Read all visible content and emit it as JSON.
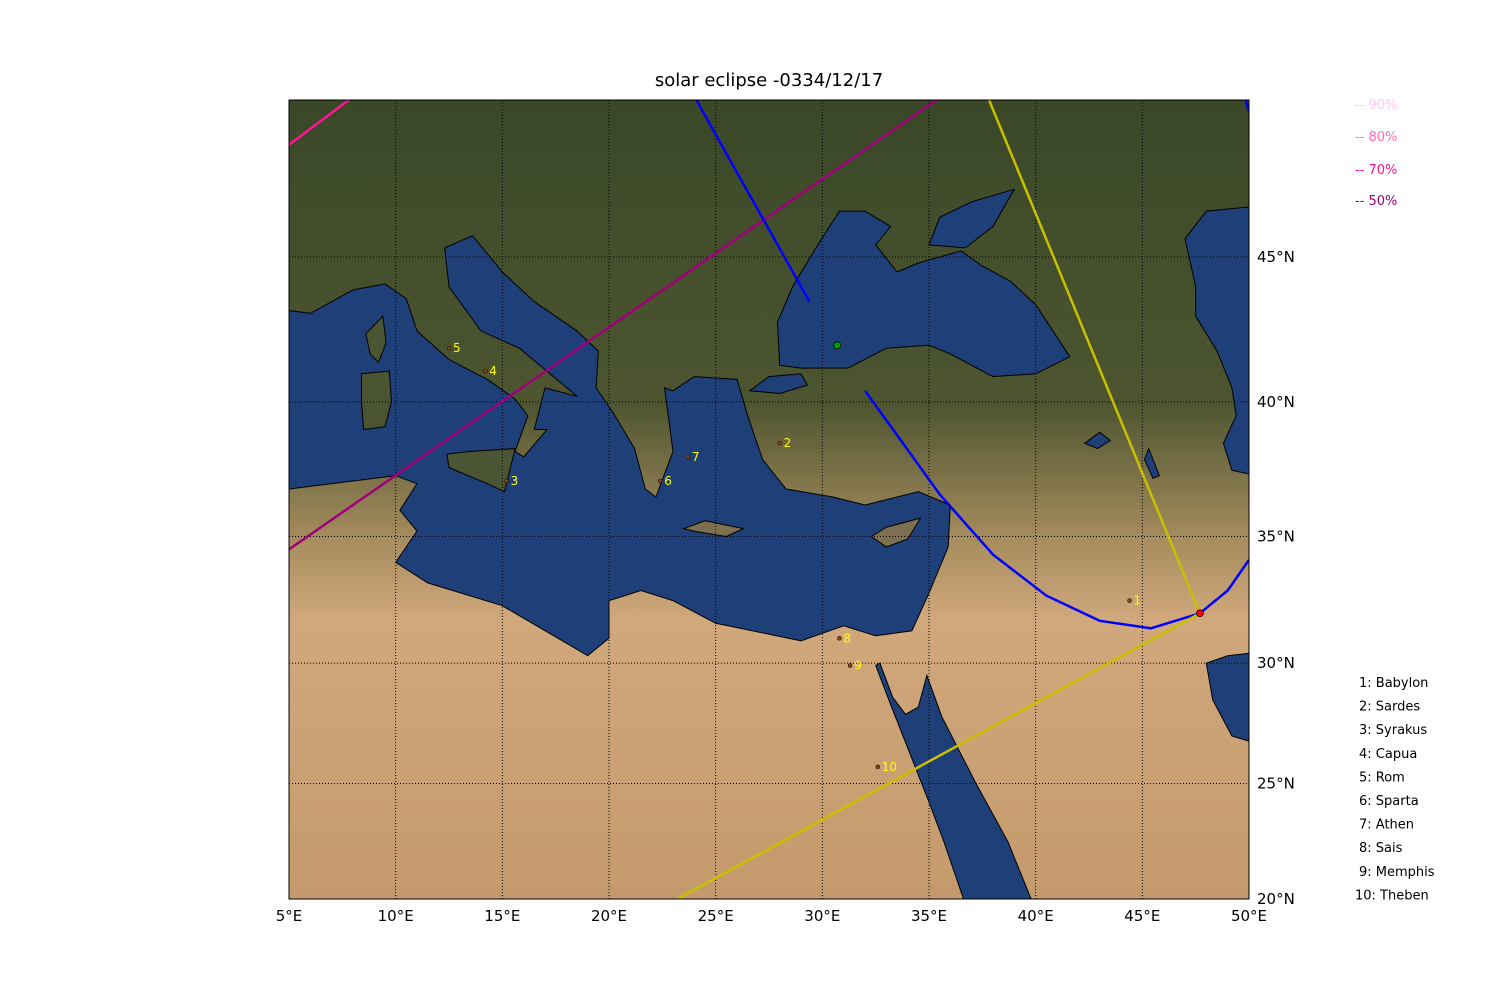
{
  "title": "solar eclipse -0334/12/17",
  "map": {
    "projection": "mercator",
    "lon_range": [
      5,
      50
    ],
    "lat_range": [
      20,
      50
    ],
    "lon_ticks": [
      5,
      10,
      15,
      20,
      25,
      30,
      35,
      40,
      45,
      50
    ],
    "lon_tick_labels": [
      "5°E",
      "10°E",
      "15°E",
      "20°E",
      "25°E",
      "30°E",
      "35°E",
      "40°E",
      "45°E",
      "50°E"
    ],
    "lat_ticks": [
      20,
      25,
      30,
      35,
      40,
      45
    ],
    "lat_tick_labels": [
      "20°N",
      "25°N",
      "30°N",
      "35°N",
      "40°N",
      "45°N"
    ],
    "grid": true,
    "colors": {
      "sea": "#1f3f78",
      "land_north": "#3e4b2c",
      "land_south": "#c9a276"
    }
  },
  "obscuration_legend": [
    {
      "label": "-- 90%",
      "color": "#ffc8f0"
    },
    {
      "label": "-- 80%",
      "color": "#ff6eb4"
    },
    {
      "label": "-- 70%",
      "color": "#ff1493"
    },
    {
      "label": "-- 50%",
      "color": "#a0007a"
    }
  ],
  "lines": [
    {
      "id": "70%",
      "color": "#ff1493",
      "points": [
        [
          5,
          48.6
        ],
        [
          8.5,
          50.3
        ]
      ]
    },
    {
      "id": "50%",
      "color": "#a0007a",
      "points": [
        [
          5,
          34.5
        ],
        [
          36.1,
          50.3
        ]
      ]
    },
    {
      "id": "blue-north",
      "color": "#0000ff",
      "points": [
        [
          23.8,
          50.3
        ],
        [
          29.4,
          43.5
        ]
      ]
    },
    {
      "id": "blue-corner",
      "color": "#0000ff",
      "points": [
        [
          49.7,
          50.3
        ],
        [
          50,
          49.6
        ]
      ]
    },
    {
      "id": "blue-curve",
      "color": "#0000ff",
      "points": [
        [
          32.0,
          40.4
        ],
        [
          33.5,
          38.8
        ],
        [
          35.5,
          36.6
        ],
        [
          38,
          34.3
        ],
        [
          40.5,
          32.7
        ],
        [
          43,
          31.7
        ],
        [
          45.4,
          31.4
        ],
        [
          47.7,
          32.0
        ],
        [
          49,
          32.9
        ],
        [
          50,
          34.1
        ]
      ]
    },
    {
      "id": "yellow",
      "color": "#c8c000",
      "points": [
        [
          37.6,
          50.3
        ],
        [
          47.7,
          32.0
        ],
        [
          23.2,
          20.0
        ]
      ]
    }
  ],
  "markers": [
    {
      "lon": 47.7,
      "lat": 32.0,
      "color": "#ff0000"
    },
    {
      "lon": 30.7,
      "lat": 42.0,
      "color": "#00a000"
    }
  ],
  "cities": [
    {
      "num": "1",
      "name": "Babylon",
      "lon": 44.4,
      "lat": 32.5,
      "legend": "1: Babylon"
    },
    {
      "num": "2",
      "name": "Sardes",
      "lon": 28.0,
      "lat": 38.5,
      "legend": "2: Sardes"
    },
    {
      "num": "3",
      "name": "Syrakus",
      "lon": 15.2,
      "lat": 37.1,
      "legend": "3: Syrakus"
    },
    {
      "num": "4",
      "name": "Capua",
      "lon": 14.2,
      "lat": 41.1,
      "legend": "4: Capua"
    },
    {
      "num": "5",
      "name": "Rom",
      "lon": 12.5,
      "lat": 41.9,
      "legend": "5: Rom"
    },
    {
      "num": "6",
      "name": "Sparta",
      "lon": 22.4,
      "lat": 37.1,
      "legend": "6: Sparta"
    },
    {
      "num": "7",
      "name": "Athen",
      "lon": 23.7,
      "lat": 38.0,
      "legend": "7: Athen"
    },
    {
      "num": "8",
      "name": "Sais",
      "lon": 30.8,
      "lat": 31.0,
      "legend": "8: Sais"
    },
    {
      "num": "9",
      "name": "Memphis",
      "lon": 31.3,
      "lat": 29.9,
      "legend": "9: Memphis"
    },
    {
      "num": "10",
      "name": "Theben",
      "lon": 32.6,
      "lat": 25.7,
      "legend": "10: Theben"
    }
  ]
}
